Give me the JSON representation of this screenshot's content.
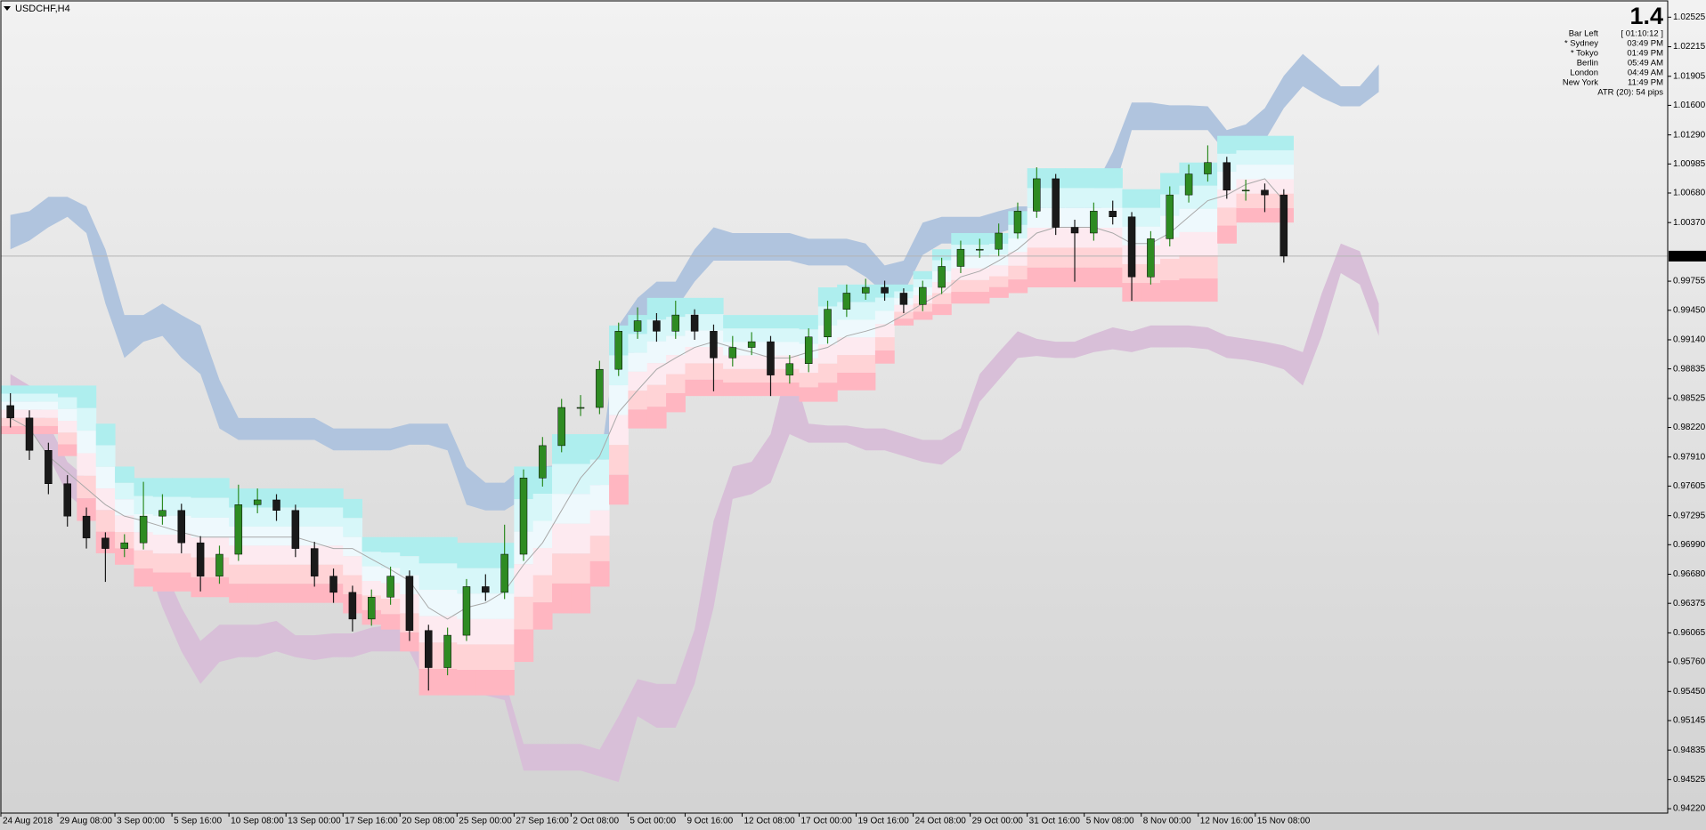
{
  "chart_data": {
    "type": "candlestick",
    "title": "USDCHF,H4",
    "ylim": [
      0.94174,
      1.02696
    ],
    "xlim": [
      0,
      87.7
    ],
    "grid": false,
    "yticks": [
      1.02525,
      1.02215,
      1.01905,
      {
        "value": 1.016,
        "label": "1.01600"
      },
      {
        "value": 1.0129,
        "label": "1.01290"
      },
      1.00985,
      {
        "value": 1.0068,
        "label": "1.00680"
      },
      {
        "value": 1.0037,
        "label": "1.00370"
      },
      0.99755,
      {
        "value": 0.9945,
        "label": "0.99450"
      },
      {
        "value": 0.9914,
        "label": "0.99140"
      },
      0.98835,
      0.98525,
      {
        "value": 0.9822,
        "label": "0.98220"
      },
      {
        "value": 0.9791,
        "label": "0.97910"
      },
      0.97605,
      0.97295,
      {
        "value": 0.9699,
        "label": "0.96990"
      },
      {
        "value": 0.9668,
        "label": "0.96680"
      },
      0.96375,
      0.96065,
      {
        "value": 0.9576,
        "label": "0.95760"
      },
      {
        "value": 0.9545,
        "label": "0.95450"
      },
      0.95145,
      0.94835,
      0.94525,
      {
        "value": 0.9422,
        "label": "0.94220"
      }
    ],
    "xticks": [
      {
        "value": 0,
        "label": "24 Aug 2018"
      },
      {
        "value": 3,
        "label": "29 Aug 08:00"
      },
      {
        "value": 6,
        "label": "3 Sep 00:00"
      },
      {
        "value": 9,
        "label": "5 Sep 16:00"
      },
      {
        "value": 12,
        "label": "10 Sep 08:00"
      },
      {
        "value": 15,
        "label": "13 Sep 00:00"
      },
      {
        "value": 18,
        "label": "17 Sep 16:00"
      },
      {
        "value": 21,
        "label": "20 Sep 08:00"
      },
      {
        "value": 24,
        "label": "25 Sep 00:00"
      },
      {
        "value": 27,
        "label": "27 Sep 16:00"
      },
      {
        "value": 30,
        "label": "2 Oct 08:00"
      },
      {
        "value": 33,
        "label": "5 Oct 00:00"
      },
      {
        "value": 36,
        "label": "9 Oct 16:00"
      },
      {
        "value": 39,
        "label": "12 Oct 08:00"
      },
      {
        "value": 42,
        "label": "17 Oct 00:00"
      },
      {
        "value": 45,
        "label": "19 Oct 16:00"
      },
      {
        "value": 48,
        "label": "24 Oct 08:00"
      },
      {
        "value": 51,
        "label": "29 Oct 00:00"
      },
      {
        "value": 54,
        "label": "31 Oct 16:00"
      },
      {
        "value": 57,
        "label": "5 Nov 08:00"
      },
      {
        "value": 60,
        "label": "8 Nov 00:00"
      },
      {
        "value": 63,
        "label": "12 Nov 16:00"
      },
      {
        "value": 66,
        "label": "15 Nov 08:00"
      }
    ],
    "up_color": "#2e8b22",
    "down_color": "#1a1a1a",
    "open": [
      0.9845,
      0.9832,
      0.9798,
      0.9763,
      0.9729,
      0.9706,
      0.9695,
      0.9701,
      0.9729,
      0.9735,
      0.9701,
      0.9666,
      0.9689,
      0.9741,
      0.9746,
      0.9735,
      0.9695,
      0.9666,
      0.9649,
      0.9621,
      0.9644,
      0.9666,
      0.9609,
      0.957,
      0.9604,
      0.9655,
      0.9649,
      0.9689,
      0.9769,
      0.9803,
      0.9843,
      0.9843,
      0.9883,
      0.9923,
      0.9934,
      0.9923,
      0.994,
      0.9923,
      0.9895,
      0.9906,
      0.9912,
      0.9877,
      0.9889,
      0.9917,
      0.9946,
      0.9963,
      0.9969,
      0.9963,
      0.9951,
      0.9969,
      0.9991,
      1.0009,
      1.0009,
      1.0026,
      1.0049,
      1.0083,
      1.0032,
      1.0026,
      1.0049,
      1.0043,
      0.998,
      1.002,
      1.0066,
      1.0088,
      1.01,
      1.0071,
      1.0071,
      1.0066
    ],
    "high": [
      0.9858,
      0.984,
      0.9806,
      0.9772,
      0.9738,
      0.9712,
      0.971,
      0.9765,
      0.9752,
      0.9742,
      0.9708,
      0.9698,
      0.9762,
      0.9758,
      0.9752,
      0.9741,
      0.9702,
      0.9674,
      0.9656,
      0.9652,
      0.9676,
      0.9672,
      0.9615,
      0.9612,
      0.9663,
      0.9668,
      0.972,
      0.9778,
      0.9812,
      0.9852,
      0.9856,
      0.9892,
      0.9932,
      0.9948,
      0.9942,
      0.9955,
      0.9946,
      0.993,
      0.9918,
      0.9922,
      0.9918,
      0.9898,
      0.9926,
      0.9955,
      0.9972,
      0.9978,
      0.9976,
      0.9968,
      0.9976,
      1.0,
      1.0018,
      1.002,
      1.0036,
      1.0058,
      1.0095,
      1.0088,
      1.004,
      1.0058,
      1.006,
      1.0048,
      1.0028,
      1.0075,
      1.0098,
      1.0118,
      1.0106,
      1.0082,
      1.0078,
      1.0072
    ],
    "low": [
      0.9822,
      0.9788,
      0.9752,
      0.9718,
      0.9695,
      0.966,
      0.9686,
      0.9694,
      0.972,
      0.969,
      0.965,
      0.9658,
      0.9682,
      0.9732,
      0.9724,
      0.9686,
      0.9655,
      0.9638,
      0.9608,
      0.9614,
      0.9636,
      0.9598,
      0.9546,
      0.9562,
      0.9598,
      0.964,
      0.9642,
      0.9682,
      0.976,
      0.9796,
      0.9834,
      0.9836,
      0.9876,
      0.9915,
      0.9912,
      0.9915,
      0.9914,
      0.986,
      0.9886,
      0.9898,
      0.9855,
      0.9868,
      0.988,
      0.991,
      0.9938,
      0.9956,
      0.9955,
      0.9942,
      0.9944,
      0.9962,
      0.9984,
      1.0,
      1.0002,
      1.002,
      1.0042,
      1.0024,
      0.9975,
      1.0018,
      1.0035,
      0.9955,
      0.9972,
      1.0012,
      1.0058,
      1.008,
      1.0062,
      1.006,
      1.0048,
      0.9995
    ],
    "close": [
      0.9832,
      0.9798,
      0.9763,
      0.9729,
      0.9706,
      0.9695,
      0.9701,
      0.9729,
      0.9735,
      0.9701,
      0.9666,
      0.9689,
      0.9741,
      0.9746,
      0.9735,
      0.9695,
      0.9666,
      0.9649,
      0.9621,
      0.9644,
      0.9666,
      0.9609,
      0.957,
      0.9604,
      0.9655,
      0.9649,
      0.9689,
      0.9769,
      0.9803,
      0.9843,
      0.9843,
      0.9883,
      0.9923,
      0.9934,
      0.9923,
      0.994,
      0.9923,
      0.9895,
      0.9906,
      0.9912,
      0.9877,
      0.9889,
      0.9917,
      0.9946,
      0.9963,
      0.9969,
      0.9963,
      0.9951,
      0.9969,
      0.9991,
      1.0009,
      1.0009,
      1.0026,
      1.0049,
      1.0083,
      1.0032,
      1.0026,
      1.0049,
      1.0043,
      0.998,
      1.002,
      1.0066,
      1.0088,
      1.01,
      1.0071,
      1.0071,
      1.0066,
      1.00018
    ],
    "bands": [
      {
        "color": "#b0c4de",
        "upper": [
          1.0045,
          1.0049,
          1.0064,
          1.0064,
          1.0054,
          1.0009,
          0.994,
          0.994,
          0.9952,
          0.994,
          0.9929,
          0.9872,
          0.9832,
          0.9832,
          0.9832,
          0.9832,
          0.9832,
          0.9821,
          0.9821,
          0.9821,
          0.9821,
          0.9826,
          0.9826,
          0.9826,
          0.9781,
          0.9764,
          0.9764,
          0.9781,
          0.9781,
          0.9783,
          0.9781,
          0.9781,
          0.9929,
          0.9958,
          0.9975,
          0.9975,
          1.0009,
          1.0032,
          1.0026,
          1.0026,
          1.0026,
          1.0026,
          1.002,
          1.002,
          1.002,
          1.0015,
          0.9992,
          0.9997,
          1.0037,
          1.0043,
          1.0043,
          1.0043,
          1.0049,
          1.0054,
          1.0054,
          1.0072,
          1.0072,
          1.0072,
          1.0111,
          1.0163,
          1.0163,
          1.016,
          1.016,
          1.0159,
          1.0134,
          1.014,
          1.0157,
          1.0191,
          1.0214,
          1.0197,
          1.018,
          1.018,
          1.0203
        ],
        "lower": [
          1.0009,
          1.0018,
          1.0032,
          1.0043,
          1.0026,
          0.9952,
          0.9895,
          0.9912,
          0.9918,
          0.9895,
          0.9878,
          0.9821,
          0.9809,
          0.9809,
          0.9809,
          0.9809,
          0.9809,
          0.9798,
          0.9798,
          0.9798,
          0.9798,
          0.9804,
          0.9804,
          0.9798,
          0.9741,
          0.9735,
          0.9735,
          0.9747,
          0.9752,
          0.9756,
          0.9735,
          0.9758,
          0.9849,
          0.9912,
          0.9929,
          0.9946,
          0.9975,
          0.9997,
          0.9997,
          0.9997,
          0.9997,
          0.9997,
          0.9992,
          0.9992,
          0.9992,
          0.998,
          0.9963,
          0.9963,
          1.0003,
          1.0015,
          1.0015,
          1.0015,
          1.0026,
          1.0032,
          1.0032,
          1.0049,
          1.0049,
          1.0043,
          1.0066,
          1.0134,
          1.0134,
          1.0134,
          1.0134,
          1.0134,
          1.0109,
          1.0111,
          1.0123,
          1.0157,
          1.018,
          1.0168,
          1.0159,
          1.0159,
          1.0174
        ]
      },
      {
        "color": "#d8bfd8",
        "upper": [
          0.9878,
          0.9866,
          0.9826,
          0.9786,
          0.9769,
          0.9764,
          0.9758,
          0.9735,
          0.9678,
          0.9633,
          0.9598,
          0.9615,
          0.9615,
          0.9615,
          0.9619,
          0.9604,
          0.9604,
          0.9606,
          0.9606,
          0.9612,
          0.9615,
          0.9615,
          0.957,
          0.9564,
          0.9564,
          0.9564,
          0.9558,
          0.949,
          0.949,
          0.949,
          0.949,
          0.9484,
          0.9519,
          0.9558,
          0.9553,
          0.9553,
          0.961,
          0.9724,
          0.9781,
          0.9786,
          0.9815,
          0.9895,
          0.9826,
          0.9824,
          0.9824,
          0.9821,
          0.9821,
          0.9815,
          0.9809,
          0.9809,
          0.9821,
          0.9878,
          0.9901,
          0.9923,
          0.9915,
          0.9912,
          0.9912,
          0.992,
          0.9927,
          0.9923,
          0.9929,
          0.9929,
          0.9929,
          0.9927,
          0.9918,
          0.9915,
          0.9912,
          0.9908,
          0.9901,
          0.9963,
          1.0015,
          1.0007,
          0.9952
        ],
        "lower": [
          0.9832,
          0.9821,
          0.9792,
          0.9752,
          0.9735,
          0.9729,
          0.9712,
          0.969,
          0.9633,
          0.9587,
          0.9553,
          0.9576,
          0.9581,
          0.9581,
          0.9587,
          0.9581,
          0.9578,
          0.9581,
          0.9581,
          0.9587,
          0.9587,
          0.9587,
          0.9547,
          0.9541,
          0.9541,
          0.9541,
          0.9536,
          0.9462,
          0.9462,
          0.9462,
          0.9462,
          0.9456,
          0.945,
          0.9519,
          0.9507,
          0.9507,
          0.9553,
          0.9633,
          0.9747,
          0.9752,
          0.9764,
          0.9815,
          0.9806,
          0.9806,
          0.9806,
          0.9798,
          0.9798,
          0.9792,
          0.9786,
          0.9783,
          0.9798,
          0.9849,
          0.9872,
          0.9895,
          0.9897,
          0.9895,
          0.9895,
          0.9901,
          0.9904,
          0.9901,
          0.9906,
          0.9906,
          0.9906,
          0.9904,
          0.9895,
          0.9893,
          0.9889,
          0.9883,
          0.9866,
          0.9918,
          0.9984,
          0.9972,
          0.9918
        ]
      }
    ],
    "channel": {
      "colors": [
        "#aeeeee",
        "#d7f7f9",
        "#eef9fd",
        "#fdeaf0",
        "#ffd3d6",
        "#ffb6c1"
      ],
      "mid_color": "#a9a9a9",
      "upper": [
        0.9866,
        0.9866,
        0.9866,
        0.9866,
        0.9866,
        0.9826,
        0.9781,
        0.9769,
        0.9769,
        0.9769,
        0.9769,
        0.9769,
        0.9758,
        0.9758,
        0.9758,
        0.9758,
        0.9758,
        0.9758,
        0.9747,
        0.9707,
        0.9707,
        0.9707,
        0.9707,
        0.9707,
        0.9701,
        0.9701,
        0.9701,
        0.9781,
        0.9781,
        0.9815,
        0.9815,
        0.9815,
        0.9929,
        0.994,
        0.9958,
        0.9958,
        0.9958,
        0.9958,
        0.994,
        0.994,
        0.994,
        0.994,
        0.994,
        0.9969,
        0.9972,
        0.9972,
        0.9972,
        0.9972,
        0.9986,
        1.0009,
        1.0026,
        1.0026,
        1.0026,
        1.0049,
        1.0094,
        1.0094,
        1.0094,
        1.0094,
        1.0094,
        1.0072,
        1.0072,
        1.0089,
        1.01,
        1.01,
        1.0128,
        1.0128,
        1.0128,
        1.0128
      ],
      "lower": [
        0.9815,
        0.9815,
        0.9815,
        0.9792,
        0.9724,
        0.969,
        0.9678,
        0.9655,
        0.965,
        0.965,
        0.9644,
        0.9644,
        0.9638,
        0.9638,
        0.9638,
        0.9638,
        0.9638,
        0.9638,
        0.9627,
        0.9615,
        0.961,
        0.9587,
        0.9541,
        0.9541,
        0.9541,
        0.9541,
        0.9541,
        0.9576,
        0.961,
        0.9627,
        0.9627,
        0.9655,
        0.9741,
        0.9821,
        0.9821,
        0.9838,
        0.9855,
        0.9855,
        0.9855,
        0.9855,
        0.9855,
        0.9855,
        0.9849,
        0.9849,
        0.9861,
        0.9861,
        0.9889,
        0.9929,
        0.9935,
        0.994,
        0.9952,
        0.9952,
        0.9958,
        0.9963,
        0.9969,
        0.9969,
        0.9969,
        0.9969,
        0.9969,
        0.9954,
        0.9954,
        0.9954,
        0.9954,
        0.9954,
        1.0015,
        1.0037,
        1.0037,
        1.0037
      ],
      "mid": [
        0.9832,
        0.9821,
        0.9792,
        0.9775,
        0.9758,
        0.9741,
        0.9729,
        0.9724,
        0.9718,
        0.9712,
        0.9707,
        0.9707,
        0.9707,
        0.9707,
        0.9707,
        0.9707,
        0.9701,
        0.9695,
        0.9695,
        0.9684,
        0.9673,
        0.9661,
        0.9633,
        0.9621,
        0.9633,
        0.9638,
        0.965,
        0.9678,
        0.9701,
        0.9735,
        0.9769,
        0.9792,
        0.9838,
        0.9861,
        0.9883,
        0.9895,
        0.9906,
        0.9912,
        0.9906,
        0.9901,
        0.9895,
        0.9895,
        0.9901,
        0.9906,
        0.9918,
        0.9923,
        0.9929,
        0.994,
        0.9952,
        0.9963,
        0.998,
        0.9986,
        0.9997,
        1.0009,
        1.0026,
        1.0032,
        1.0032,
        1.0032,
        1.0026,
        1.0015,
        1.0015,
        1.0026,
        1.0043,
        1.006,
        1.0066,
        1.0077,
        1.0083,
        1.006
      ]
    },
    "last_price": 1.00018,
    "info_panel": {
      "value": 1.4,
      "rows": [
        {
          "label": "Bar Left",
          "value": "[ 01:10:12 ]",
          "color": "#9a9a9a"
        },
        {
          "label": "* Sydney",
          "value": "03:49 PM",
          "color": "#ff0000"
        },
        {
          "label": "* Tokyo",
          "value": "01:49 PM",
          "color": "#ff0000"
        },
        {
          "label": "Berlin",
          "value": "05:49 AM",
          "color": "#9a9a9a"
        },
        {
          "label": "London",
          "value": "04:49 AM",
          "color": "#9a9a9a"
        },
        {
          "label": "New York",
          "value": "11:49 PM",
          "color": "#9a9a9a"
        }
      ],
      "footer": "ATR (20): 54 pips"
    }
  }
}
